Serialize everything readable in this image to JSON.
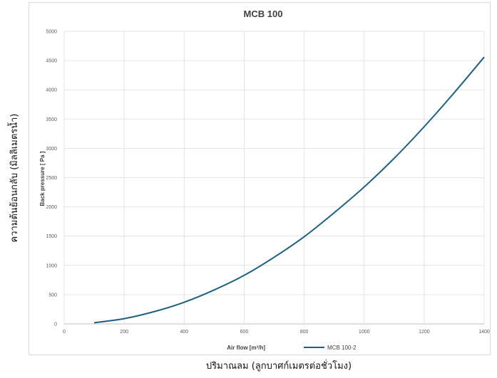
{
  "outer_labels": {
    "y": "ความต้นย้อนกลับ (มิลลิเมตรน้ำ)",
    "x": "ปริมาณลม (ลูกบาศก์เมตรต่อชั่วโมง)"
  },
  "chart_data": {
    "type": "line",
    "title": "MCB 100",
    "xlabel": "Air flow [m³/h]",
    "ylabel": "Back pressure [ Pa ]",
    "xlim": [
      0,
      1400
    ],
    "ylim": [
      0,
      5000
    ],
    "x_ticks": [
      "0",
      "200",
      "400",
      "600",
      "800",
      "1000",
      "1200",
      "1400"
    ],
    "y_ticks": [
      "0",
      "500",
      "1000",
      "1500",
      "2000",
      "2500",
      "3000",
      "3500",
      "4000",
      "4500",
      "5000"
    ],
    "grid": true,
    "legend_position": "bottom",
    "series": [
      {
        "name": "MCB 100-2",
        "color": "#1f5f80",
        "x": [
          100,
          200,
          300,
          400,
          500,
          600,
          700,
          800,
          900,
          1000,
          1100,
          1200,
          1300,
          1400
        ],
        "y": [
          20,
          90,
          210,
          370,
          580,
          830,
          1140,
          1490,
          1900,
          2340,
          2830,
          3370,
          3950,
          4560
        ]
      }
    ]
  }
}
